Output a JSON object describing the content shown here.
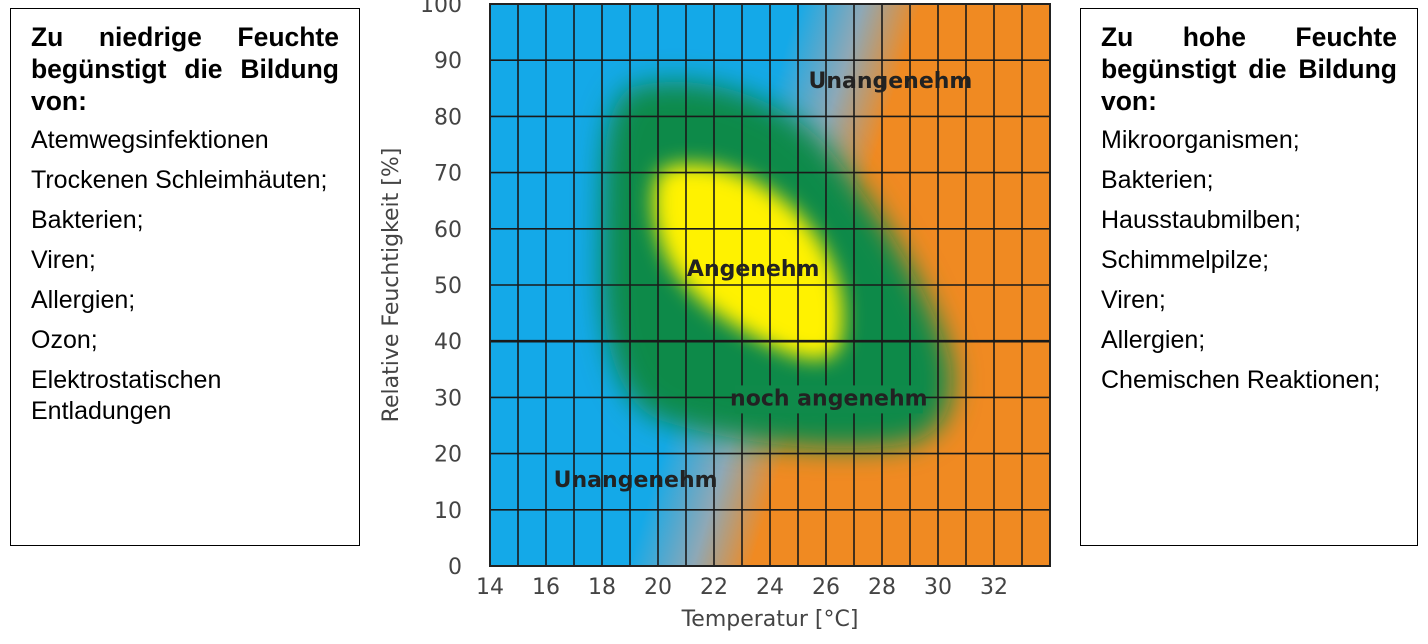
{
  "left_box": {
    "title": "Zu niedrige Feuchte begünstigt die Bildung von:",
    "items": [
      "Atemwegsinfektionen",
      "Trockenen Schleimhäuten;",
      "Bakterien;",
      "Viren;",
      "Allergien;",
      "Ozon;",
      "Elektrostatischen Entladungen"
    ]
  },
  "right_box": {
    "title": "Zu hohe Feuchte begünstigt die Bildung von:",
    "items": [
      "Mikroorganismen;",
      "Bakterien;",
      "Hausstaubmilben;",
      "Schimmelpilze;",
      "Viren;",
      "Allergien;",
      "Chemischen Reaktionen;"
    ]
  },
  "chart_data": {
    "type": "heatmap",
    "title": "",
    "xlabel": "Temperatur [°C]",
    "ylabel": "Relative Feuchtigkeit [%]",
    "xlim": [
      14,
      34
    ],
    "ylim": [
      0,
      100
    ],
    "x_ticks": [
      "14",
      "16",
      "18",
      "20",
      "22",
      "24",
      "26",
      "28",
      "30",
      "32"
    ],
    "y_ticks": [
      "0",
      "10",
      "20",
      "30",
      "40",
      "50",
      "60",
      "70",
      "80",
      "90",
      "100"
    ],
    "grid": true,
    "zones": [
      {
        "label": "Unangenehm",
        "side": "high temperature / high humidity",
        "color": "#f08a22",
        "label_at": {
          "x": 28.3,
          "y": 86.5
        }
      },
      {
        "label": "Unangenehm",
        "side": "low temperature / low humidity",
        "color": "#14a9e8",
        "label_at": {
          "x": 19.2,
          "y": 15.5
        }
      },
      {
        "label": "noch angenehm",
        "color": "#0f8a4a",
        "label_at": {
          "x": 26.1,
          "y": 30
        }
      },
      {
        "label": "Angenehm",
        "color": "#fff200",
        "label_at": {
          "x": 23.4,
          "y": 53
        }
      }
    ]
  }
}
